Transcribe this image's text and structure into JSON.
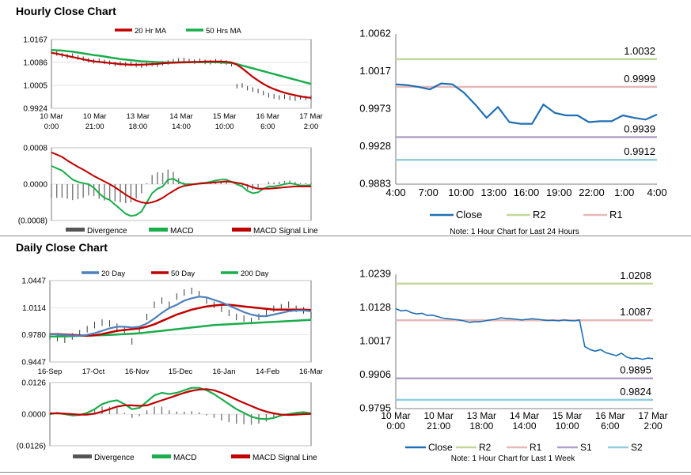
{
  "hourly": {
    "title": "Hourly Close Chart",
    "price": {
      "legend": [
        {
          "name": "20 Hr MA",
          "color": "#c00000"
        },
        {
          "name": "50 Hrs MA",
          "color": "#1aad4b"
        }
      ],
      "ylim": [
        0.9924,
        1.0167
      ],
      "yticks": [
        "1.0167",
        "1.0086",
        "1.0005",
        "0.9924"
      ],
      "xticks": [
        [
          "10 Mar",
          "0:00"
        ],
        [
          "10 Mar",
          "21:00"
        ],
        [
          "13 Mar",
          "18:00"
        ],
        [
          "14 Mar",
          "14:00"
        ],
        [
          "15 Mar",
          "10:00"
        ],
        [
          "16 Mar",
          "6:00"
        ],
        [
          "17 Mar",
          "2:00"
        ]
      ],
      "close": [
        1.0125,
        1.0118,
        1.0112,
        1.0108,
        1.011,
        1.0103,
        1.0099,
        1.0094,
        1.009,
        1.0092,
        1.0088,
        1.0085,
        1.008,
        1.0082,
        1.0079,
        1.0081,
        1.0077,
        1.0075,
        1.0079,
        1.0081,
        1.0078,
        1.0083,
        1.0086,
        1.009,
        1.0093,
        1.0095,
        1.0091,
        1.0089,
        1.0092,
        1.0088,
        1.0087,
        1.009,
        1.0088,
        1.0086,
        1.008,
        1.0002,
        1.0005,
        0.9995,
        0.999,
        0.9985,
        0.9978,
        0.997,
        0.9966,
        0.9962,
        0.9965,
        0.996,
        0.9958,
        0.9962,
        0.996,
        0.9962
      ],
      "ma20": [
        1.012,
        1.0117,
        1.0113,
        1.0109,
        1.0105,
        1.0101,
        1.0097,
        1.0093,
        1.009,
        1.0088,
        1.0086,
        1.0084,
        1.0082,
        1.008,
        1.0079,
        1.0078,
        1.0078,
        1.0078,
        1.0079,
        1.008,
        1.0081,
        1.0083,
        1.0084,
        1.0085,
        1.0086,
        1.0087,
        1.0087,
        1.0088,
        1.0088,
        1.0089,
        1.0089,
        1.0089,
        1.0089,
        1.0088,
        1.0086,
        1.0078,
        1.0065,
        1.005,
        1.0035,
        1.0022,
        1.001,
        1.0,
        0.9992,
        0.9985,
        0.9979,
        0.9974,
        0.997,
        0.9966,
        0.9963,
        0.9961
      ],
      "ma50": [
        1.013,
        1.0129,
        1.0128,
        1.0126,
        1.0124,
        1.0121,
        1.0118,
        1.0115,
        1.0112,
        1.011,
        1.0107,
        1.0104,
        1.0101,
        1.0098,
        1.0096,
        1.0094,
        1.0092,
        1.009,
        1.0089,
        1.0088,
        1.0087,
        1.0086,
        1.0086,
        1.0086,
        1.0086,
        1.0086,
        1.0087,
        1.0087,
        1.0087,
        1.0087,
        1.0087,
        1.0087,
        1.0086,
        1.0085,
        1.0084,
        1.008,
        1.0075,
        1.007,
        1.0065,
        1.006,
        1.0055,
        1.005,
        1.0045,
        1.004,
        1.0035,
        1.003,
        1.0025,
        1.002,
        1.0015,
        1.001
      ]
    },
    "macd": {
      "legend": [
        {
          "name": "Divergence",
          "color": "#555555"
        },
        {
          "name": "MACD",
          "color": "#1aad4b"
        },
        {
          "name": "MACD Signal Line",
          "color": "#c00000"
        }
      ],
      "ylim": [
        -0.0008,
        0.0008
      ],
      "yticks": [
        "0.0008",
        "0.0000",
        "(0.0008)"
      ],
      "macd": [
        0.0004,
        0.00035,
        0.0003,
        0.0002,
        0.0001,
        5e-05,
        2e-05,
        0.0,
        -8e-05,
        -0.0002,
        -0.0003,
        -0.00035,
        -0.00045,
        -0.00055,
        -0.00065,
        -0.0007,
        -0.00068,
        -0.0006,
        -0.0004,
        -0.0002,
        -0.0001,
        -5e-05,
        0.0001,
        0.00012,
        5e-05,
        0.0,
        0.0,
        0.0,
        2e-05,
        3e-05,
        5e-05,
        8e-05,
        0.0001,
        0.0001,
        5e-05,
        0.0,
        -5e-05,
        -0.00015,
        -0.0002,
        -0.00018,
        -0.0001,
        -5e-05,
        -5e-05,
        -3e-05,
        -0.0,
        2e-05,
        0.0,
        -3e-05,
        -3e-05,
        -2e-05
      ],
      "signal": [
        0.0007,
        0.00065,
        0.0006,
        0.00052,
        0.00045,
        0.00038,
        0.00032,
        0.00025,
        0.00018,
        0.00012,
        6e-05,
        0.0,
        -7e-05,
        -0.00015,
        -0.00023,
        -0.0003,
        -0.00036,
        -0.0004,
        -0.00042,
        -0.0004,
        -0.00036,
        -0.0003,
        -0.00022,
        -0.00015,
        -8e-05,
        -4e-05,
        -2e-05,
        0.0,
        1e-05,
        2e-05,
        3e-05,
        4e-05,
        5e-05,
        6e-05,
        5e-05,
        3e-05,
        1e-05,
        -3e-05,
        -7e-05,
        -0.0001,
        -0.0001,
        -0.0001,
        -9e-05,
        -8e-05,
        -7e-05,
        -6e-05,
        -5e-05,
        -5e-05,
        -5e-05,
        -5e-05
      ]
    },
    "levels": {
      "ylim": [
        0.9883,
        1.0062
      ],
      "yticks": [
        "1.0062",
        "1.0017",
        "0.9973",
        "0.9928",
        "0.9883"
      ],
      "xticks": [
        "4:00",
        "7:00",
        "10:00",
        "13:00",
        "16:00",
        "19:00",
        "22:00",
        "1:00",
        "4:00"
      ],
      "close": [
        1.0002,
        1.0001,
        0.9999,
        0.9996,
        1.0003,
        1.0002,
        0.9992,
        0.9978,
        0.9962,
        0.9975,
        0.9957,
        0.9955,
        0.9955,
        0.9978,
        0.9968,
        0.9965,
        0.9965,
        0.9957,
        0.9958,
        0.9958,
        0.9965,
        0.9962,
        0.996,
        0.9966
      ],
      "lines": [
        {
          "name": "R2",
          "value": 1.0032,
          "label": "1.0032",
          "color": "#c4d79b"
        },
        {
          "name": "R1",
          "value": 0.9999,
          "label": "0.9999",
          "color": "#e6b9b8"
        },
        {
          "name": "S1",
          "value": 0.9939,
          "label": "0.9939",
          "color": "#b3a2c7"
        },
        {
          "name": "S2",
          "value": 0.9912,
          "label": "0.9912",
          "color": "#93cddd"
        }
      ],
      "legend": [
        {
          "name": "Close",
          "color": "#1f6fb4"
        },
        {
          "name": "R2",
          "color": "#c4d79b"
        },
        {
          "name": "R1",
          "color": "#e6b9b8"
        }
      ],
      "note": "Note: 1 Hour Chart for Last 24 Hours"
    }
  },
  "daily": {
    "title": "Daily Close Chart",
    "price": {
      "legend": [
        {
          "name": "20 Day",
          "color": "#4f81bd"
        },
        {
          "name": "50 Day",
          "color": "#c00000"
        },
        {
          "name": "200 Day",
          "color": "#1aad4b"
        }
      ],
      "ylim": [
        0.9447,
        1.0447
      ],
      "yticks": [
        "1.0447",
        "1.0114",
        "0.9780",
        "0.9447"
      ],
      "xticks": [
        "16-Sep",
        "17-Oct",
        "16-Nov",
        "15-Dec",
        "16-Jan",
        "14-Feb",
        "16-Mar"
      ],
      "close": [
        0.976,
        0.974,
        0.972,
        0.976,
        0.98,
        0.985,
        0.99,
        0.993,
        0.992,
        0.988,
        0.983,
        0.97,
        0.985,
        1.0,
        1.015,
        1.02,
        1.015,
        1.025,
        1.03,
        1.032,
        1.028,
        1.02,
        1.015,
        1.01,
        1.005,
        1.0,
        0.998,
        0.995,
        1.0,
        1.005,
        1.01,
        1.012,
        1.015,
        1.01,
        1.008,
        1.002
      ],
      "ma20": [
        0.979,
        0.9785,
        0.978,
        0.977,
        0.977,
        0.978,
        0.98,
        0.983,
        0.986,
        0.988,
        0.988,
        0.987,
        0.988,
        0.992,
        0.998,
        1.005,
        1.011,
        1.015,
        1.02,
        1.023,
        1.025,
        1.024,
        1.021,
        1.018,
        1.014,
        1.01,
        1.006,
        1.003,
        1.001,
        1.001,
        1.003,
        1.005,
        1.007,
        1.008,
        1.008,
        1.007
      ],
      "ma50": [
        0.979,
        0.979,
        0.9785,
        0.978,
        0.9775,
        0.977,
        0.9775,
        0.979,
        0.981,
        0.983,
        0.984,
        0.985,
        0.986,
        0.988,
        0.991,
        0.995,
        0.999,
        1.003,
        1.006,
        1.009,
        1.011,
        1.013,
        1.014,
        1.015,
        1.015,
        1.014,
        1.013,
        1.012,
        1.011,
        1.01,
        1.009,
        1.009,
        1.009,
        1.009,
        1.009,
        1.0085
      ],
      "ma200": [
        0.976,
        0.976,
        0.9762,
        0.9765,
        0.9768,
        0.977,
        0.9773,
        0.9776,
        0.978,
        0.9785,
        0.979,
        0.9795,
        0.98,
        0.981,
        0.982,
        0.983,
        0.984,
        0.985,
        0.986,
        0.987,
        0.988,
        0.989,
        0.99,
        0.9905,
        0.991,
        0.9915,
        0.992,
        0.9925,
        0.993,
        0.9935,
        0.994,
        0.9945,
        0.995,
        0.9955,
        0.996,
        0.9965
      ]
    },
    "macd": {
      "legend": [
        {
          "name": "Divergence",
          "color": "#555555"
        },
        {
          "name": "MACD",
          "color": "#1aad4b"
        },
        {
          "name": "MACD Signal Line",
          "color": "#c00000"
        }
      ],
      "ylim": [
        -0.0126,
        0.0126
      ],
      "yticks": [
        "0.0126",
        "0.0000",
        "(0.0126)"
      ],
      "macd": [
        0.0,
        0.0005,
        0.0,
        -0.0005,
        -0.0003,
        0.0005,
        0.002,
        0.004,
        0.005,
        0.0055,
        0.004,
        0.002,
        0.0025,
        0.005,
        0.0075,
        0.0085,
        0.008,
        0.0085,
        0.0095,
        0.0105,
        0.0105,
        0.0095,
        0.008,
        0.006,
        0.004,
        0.002,
        0.0005,
        -0.001,
        -0.0018,
        -0.002,
        -0.0015,
        -0.0005,
        0.0,
        0.0005,
        0.0008,
        0.0003
      ],
      "signal": [
        0.0003,
        0.0003,
        0.0002,
        0.0,
        -0.0002,
        -0.0002,
        0.0002,
        0.001,
        0.002,
        0.003,
        0.0035,
        0.0035,
        0.0033,
        0.0035,
        0.0045,
        0.0055,
        0.0065,
        0.0075,
        0.0085,
        0.0093,
        0.0098,
        0.01,
        0.0095,
        0.0085,
        0.0072,
        0.0058,
        0.0045,
        0.0032,
        0.002,
        0.001,
        0.0003,
        -0.0002,
        -0.0003,
        -0.0002,
        0.0,
        0.0001
      ]
    },
    "levels": {
      "ylim": [
        0.9795,
        1.0239
      ],
      "yticks": [
        "1.0239",
        "1.0128",
        "1.0017",
        "0.9906",
        "0.9795"
      ],
      "xticks": [
        [
          "10 Mar",
          "0:00"
        ],
        [
          "10 Mar",
          "21:00"
        ],
        [
          "13 Mar",
          "18:00"
        ],
        [
          "14 Mar",
          "14:00"
        ],
        [
          "15 Mar",
          "10:00"
        ],
        [
          "16 Mar",
          "6:00"
        ],
        [
          "17 Mar",
          "2:00"
        ]
      ],
      "close": [
        1.0125,
        1.0118,
        1.012,
        1.0112,
        1.0108,
        1.011,
        1.0103,
        1.0104,
        1.0099,
        1.0094,
        1.0092,
        1.009,
        1.0088,
        1.0085,
        1.008,
        1.0082,
        1.0082,
        1.0085,
        1.0088,
        1.009,
        1.0095,
        1.0093,
        1.0092,
        1.009,
        1.0088,
        1.009,
        1.0092,
        1.009,
        1.0088,
        1.0086,
        1.0087,
        1.0085,
        1.0088,
        1.0086,
        1.0085,
        1.0088,
        1.0,
        0.999,
        0.9985,
        0.999,
        0.998,
        0.9975,
        0.997,
        0.9978,
        0.9965,
        0.996,
        0.9962,
        0.9958,
        0.9962,
        0.996
      ],
      "lines": [
        {
          "name": "R2",
          "value": 1.0208,
          "label": "1.0208",
          "color": "#c4d79b"
        },
        {
          "name": "R1",
          "value": 1.0087,
          "label": "1.0087",
          "color": "#e6b9b8"
        },
        {
          "name": "S1",
          "value": 0.9895,
          "label": "0.9895",
          "color": "#b3a2c7"
        },
        {
          "name": "S2",
          "value": 0.9824,
          "label": "0.9824",
          "color": "#93cddd"
        }
      ],
      "legend": [
        {
          "name": "Close",
          "color": "#1f6fb4"
        },
        {
          "name": "R2",
          "color": "#c4d79b"
        },
        {
          "name": "R1",
          "color": "#e6b9b8"
        },
        {
          "name": "S1",
          "color": "#b3a2c7"
        },
        {
          "name": "S2",
          "color": "#93cddd"
        }
      ],
      "note": "Note: 1 Hour Chart for Last 1 Week"
    }
  },
  "chart_data": [
    {
      "type": "line",
      "title": "Hourly Close Chart",
      "series": [
        {
          "name": "20 Hr MA"
        },
        {
          "name": "50 Hrs MA"
        }
      ],
      "ylim": [
        0.9924,
        1.0167
      ]
    },
    {
      "type": "bar",
      "series": [
        {
          "name": "Divergence"
        },
        {
          "name": "MACD"
        },
        {
          "name": "MACD Signal Line"
        }
      ],
      "ylim": [
        -0.0008,
        0.0008
      ]
    },
    {
      "type": "line",
      "series": [
        {
          "name": "Close"
        },
        {
          "name": "R2",
          "values": [
            1.0032
          ]
        },
        {
          "name": "R1",
          "values": [
            0.9999
          ]
        }
      ],
      "ylim": [
        0.9883,
        1.0062
      ]
    },
    {
      "type": "line",
      "title": "Daily Close Chart",
      "series": [
        {
          "name": "20 Day"
        },
        {
          "name": "50 Day"
        },
        {
          "name": "200 Day"
        }
      ],
      "ylim": [
        0.9447,
        1.0447
      ]
    },
    {
      "type": "bar",
      "series": [
        {
          "name": "Divergence"
        },
        {
          "name": "MACD"
        },
        {
          "name": "MACD Signal Line"
        }
      ],
      "ylim": [
        -0.0126,
        0.0126
      ]
    },
    {
      "type": "line",
      "series": [
        {
          "name": "Close"
        },
        {
          "name": "R2",
          "values": [
            1.0208
          ]
        },
        {
          "name": "R1",
          "values": [
            1.0087
          ]
        },
        {
          "name": "S1",
          "values": [
            0.9895
          ]
        },
        {
          "name": "S2",
          "values": [
            0.9824
          ]
        }
      ],
      "ylim": [
        0.9795,
        1.0239
      ]
    }
  ]
}
